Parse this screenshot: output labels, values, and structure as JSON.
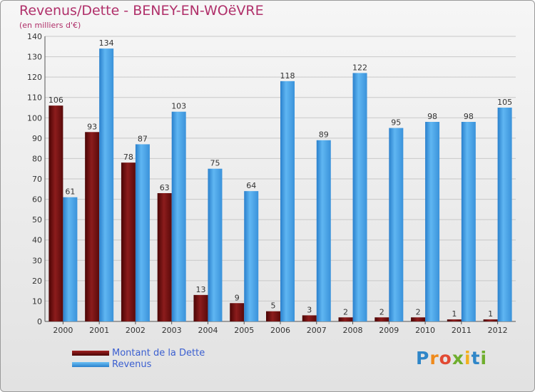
{
  "header": {
    "title": "Revenus/Dette - BENEY-EN-WOëVRE",
    "subtitle": "(en milliers d'€)"
  },
  "legend": {
    "items": [
      {
        "label": "Montant de la Dette",
        "color": "#7a1414"
      },
      {
        "label": "Revenus",
        "color": "#3f9fe6"
      }
    ]
  },
  "logo": {
    "text": "Proxiti",
    "letters": [
      "P",
      "r",
      "o",
      "x",
      "i",
      "t",
      "i"
    ],
    "colors": [
      "#2f86c8",
      "#ef8a1c",
      "#e24a33",
      "#6fae2e",
      "#f2b01c",
      "#2f86c8",
      "#6fae2e"
    ]
  },
  "chart_data": {
    "type": "bar",
    "categories": [
      "2000",
      "2001",
      "2002",
      "2003",
      "2004",
      "2005",
      "2006",
      "2007",
      "2008",
      "2009",
      "2010",
      "2011",
      "2012"
    ],
    "series": [
      {
        "name": "Montant de la Dette",
        "color": "#7a1414",
        "values": [
          106,
          93,
          78,
          63,
          13,
          9,
          5,
          3,
          2,
          2,
          2,
          1,
          1
        ]
      },
      {
        "name": "Revenus",
        "color": "#3f9fe6",
        "values": [
          61,
          134,
          87,
          103,
          75,
          64,
          118,
          89,
          122,
          95,
          98,
          98,
          105
        ]
      }
    ],
    "ylim": [
      0,
      140
    ],
    "ytick_step": 10,
    "grid": true,
    "data_labels": true,
    "legend_position": "bottom-left"
  }
}
